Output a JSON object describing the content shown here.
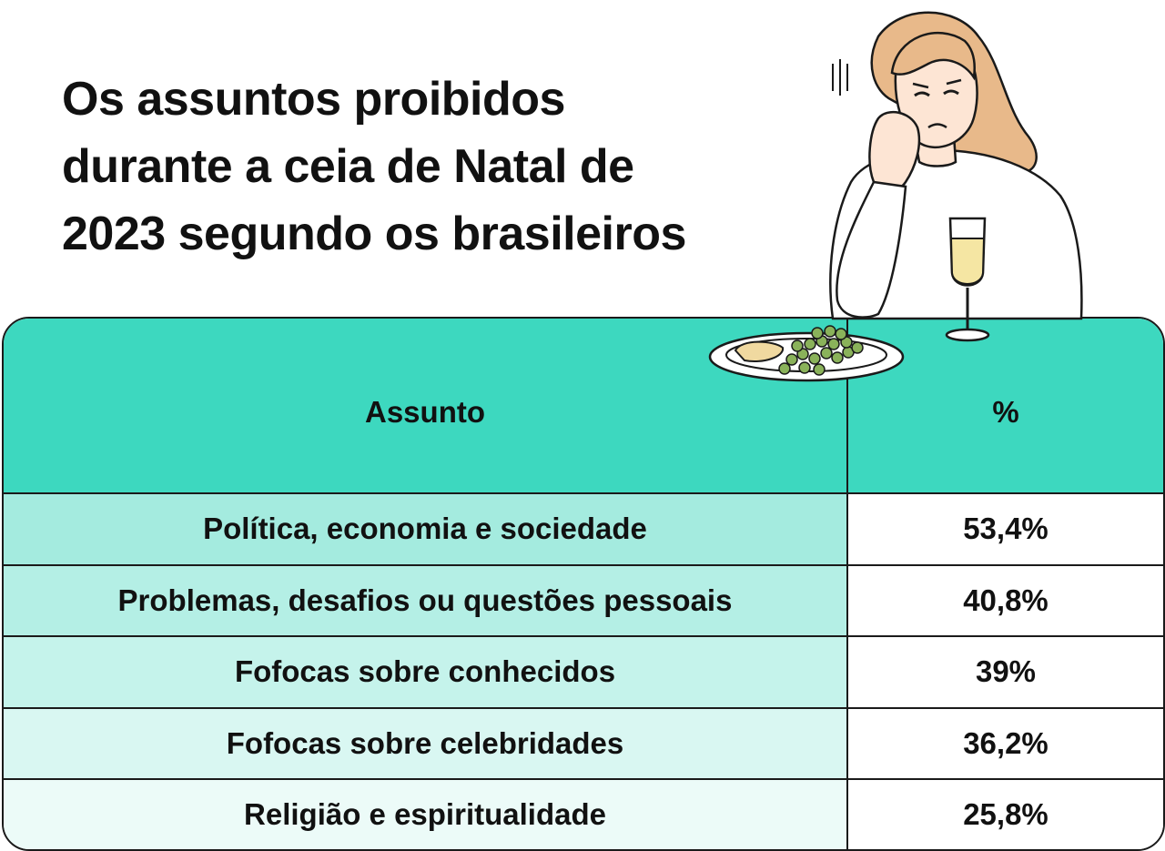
{
  "title_lines": [
    "Os assuntos proibidos",
    "durante a ceia de Natal de",
    "2023 segundo os brasileiros"
  ],
  "colors": {
    "header_bg": "#3dd8bf",
    "row_tints": [
      "#a4ebdf",
      "#b4efe5",
      "#c5f3eb",
      "#d9f7f2",
      "#ecfbf8"
    ],
    "border": "#1a1a1a"
  },
  "illustration": {
    "icon": "woman-bored-at-dinner-table",
    "elements": [
      "woman-icon",
      "wine-glass-icon",
      "plate-with-peas-icon"
    ]
  },
  "chart_data": {
    "type": "table",
    "columns": [
      "Assunto",
      "%"
    ],
    "rows": [
      {
        "category": "Política, economia e sociedade",
        "value": 53.4,
        "label": "53,4%"
      },
      {
        "category": "Problemas, desafios ou questões pessoais",
        "value": 40.8,
        "label": "40,8%"
      },
      {
        "category": "Fofocas sobre conhecidos",
        "value": 39,
        "label": "39%"
      },
      {
        "category": "Fofocas sobre celebridades",
        "value": 36.2,
        "label": "36,2%"
      },
      {
        "category": "Religião e espiritualidade",
        "value": 25.8,
        "label": "25,8%"
      }
    ]
  }
}
